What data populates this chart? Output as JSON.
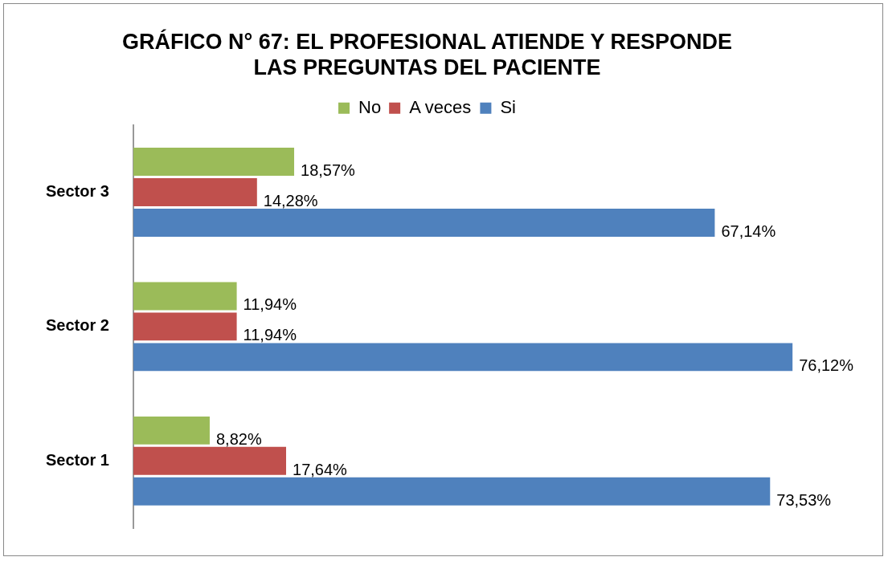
{
  "chart_data": {
    "type": "bar",
    "orientation": "horizontal",
    "title": "GRÁFICO N° 67: EL PROFESIONAL ATIENDE Y RESPONDE\nLAS PREGUNTAS DEL PACIENTE",
    "categories": [
      "Sector 3",
      "Sector 2",
      "Sector 1"
    ],
    "legend": "top",
    "tick_labels": "y",
    "series": [
      {
        "name": "No",
        "color": "#9bbb59",
        "values": [
          18.57,
          11.94,
          8.82
        ],
        "value_labels": [
          "18,57%",
          "11,94%",
          "8,82%"
        ]
      },
      {
        "name": "A veces",
        "color": "#c0504d",
        "values": [
          14.28,
          11.94,
          17.64
        ],
        "value_labels": [
          "14,28%",
          "11,94%",
          "17,64%"
        ]
      },
      {
        "name": "Si",
        "color": "#4f81bd",
        "values": [
          67.14,
          76.12,
          73.53
        ],
        "value_labels": [
          "67,14%",
          "76,12%",
          "73,53%"
        ]
      }
    ]
  }
}
